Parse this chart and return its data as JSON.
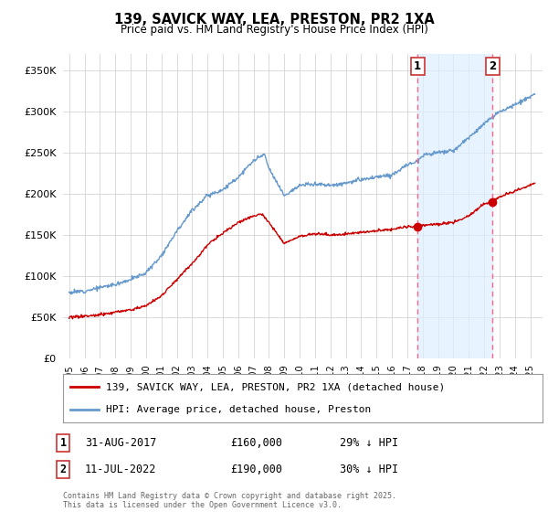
{
  "title": "139, SAVICK WAY, LEA, PRESTON, PR2 1XA",
  "subtitle": "Price paid vs. HM Land Registry's House Price Index (HPI)",
  "ylim": [
    0,
    370000
  ],
  "yticks": [
    0,
    50000,
    100000,
    150000,
    200000,
    250000,
    300000,
    350000
  ],
  "xlim_start": 1994.6,
  "xlim_end": 2025.8,
  "legend_line1": "139, SAVICK WAY, LEA, PRESTON, PR2 1XA (detached house)",
  "legend_line2": "HPI: Average price, detached house, Preston",
  "marker1_date": 2017.67,
  "marker1_label": "1",
  "marker1_price": "£160,000",
  "marker1_pct": "29% ↓ HPI",
  "marker1_text": "31-AUG-2017",
  "marker2_date": 2022.54,
  "marker2_label": "2",
  "marker2_price": "£190,000",
  "marker2_pct": "30% ↓ HPI",
  "marker2_text": "11-JUL-2022",
  "copyright_text": "Contains HM Land Registry data © Crown copyright and database right 2025.\nThis data is licensed under the Open Government Licence v3.0.",
  "line_red_color": "#cc0000",
  "line_blue_color": "#6699cc",
  "shade_color": "#ddeeff",
  "bg_color": "#ffffff",
  "grid_color": "#cccccc",
  "vline_color": "#ff6688",
  "marker1_y_red": 160000,
  "marker2_y_red": 190000
}
